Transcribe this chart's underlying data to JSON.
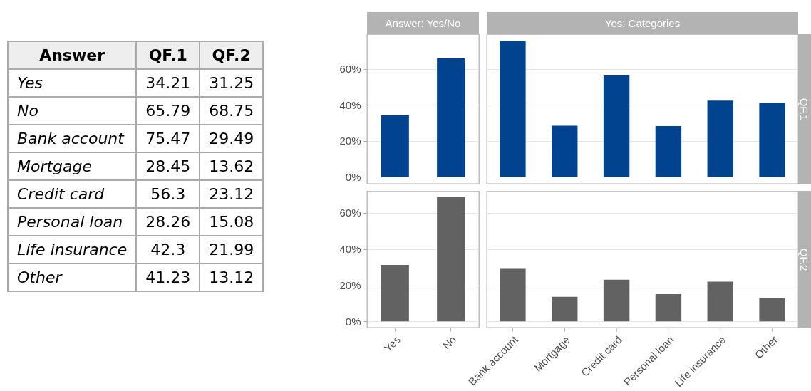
{
  "chart_data": [
    {
      "type": "other",
      "xlabel": "Answer",
      "data_labels": true,
      "categories": [
        "Yes",
        "No",
        "Bank account",
        "Mortgage",
        "Credit card",
        "Personal loan",
        "Life insurance",
        "Other"
      ],
      "series": [
        {
          "name": "QF.1",
          "values": [
            34.21,
            65.79,
            75.47,
            28.45,
            56.3,
            28.26,
            42.3,
            41.23
          ]
        },
        {
          "name": "QF.2",
          "values": [
            31.25,
            68.75,
            29.49,
            13.62,
            23.12,
            15.08,
            21.99,
            13.12
          ]
        }
      ]
    },
    {
      "type": "bar",
      "title": "Answer: Yes/No",
      "categories": [
        null,
        null
      ],
      "values": [
        34.21,
        65.79
      ],
      "color": "#01438f",
      "ylim": [
        -3.8,
        79.2
      ],
      "yticks": [
        {
          "value": 0,
          "label": "0%"
        },
        {
          "value": 20,
          "label": "20%"
        },
        {
          "value": 40,
          "label": "40%"
        },
        {
          "value": 60,
          "label": "60%"
        }
      ],
      "grid": "y",
      "tick_labels": "y"
    },
    {
      "type": "bar",
      "title": "Yes: Categories",
      "y2label": "QF.1",
      "categories": [
        null,
        null,
        null,
        null,
        null,
        null
      ],
      "values": [
        75.47,
        28.45,
        56.3,
        28.26,
        42.3,
        41.23
      ],
      "color": "#01438f",
      "ylim": [
        -3.8,
        79.2
      ],
      "grid": "y",
      "tick_labels": false
    },
    {
      "type": "bar",
      "categories": [
        "Yes",
        "No"
      ],
      "values": [
        31.25,
        68.75
      ],
      "color": "#626263",
      "ylim": [
        -3.4,
        72.2
      ],
      "yticks": [
        {
          "value": 0,
          "label": "0%"
        },
        {
          "value": 20,
          "label": "20%"
        },
        {
          "value": 40,
          "label": "40%"
        },
        {
          "value": 60,
          "label": "60%"
        }
      ],
      "grid": "y"
    },
    {
      "type": "bar",
      "y2label": "QF.2",
      "categories": [
        "Bank account",
        "Mortgage",
        "Credit card",
        "Personal loan",
        "Life insurance",
        "Other"
      ],
      "values": [
        29.49,
        13.62,
        23.12,
        15.08,
        21.99,
        13.12
      ],
      "color": "#626263",
      "ylim": [
        -3.4,
        72.2
      ],
      "grid": "y",
      "tick_labels": "x"
    }
  ]
}
